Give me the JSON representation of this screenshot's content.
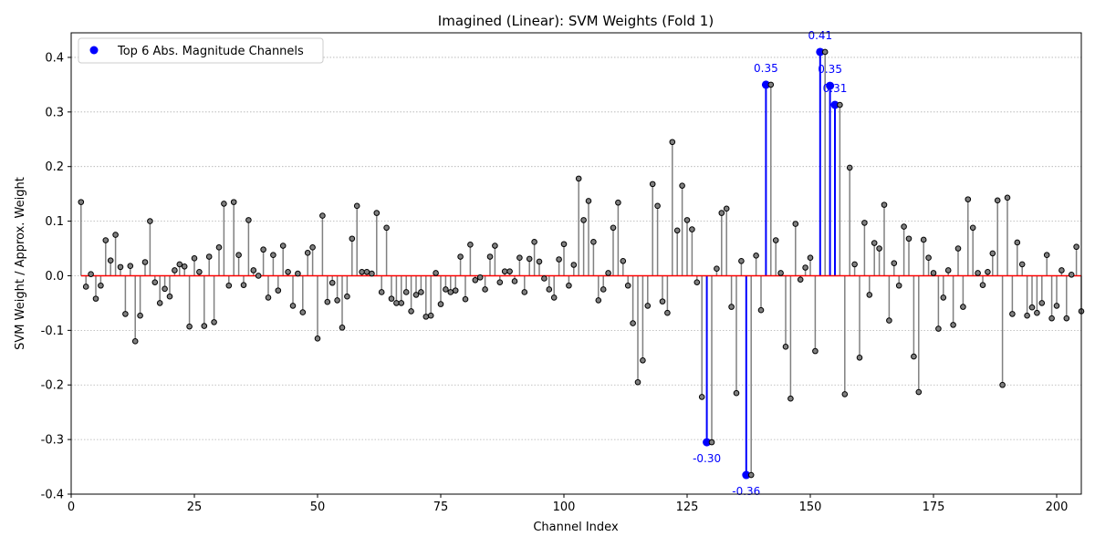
{
  "chart_data": {
    "type": "stem",
    "title": "Imagined (Linear): SVM Weights (Fold 1)",
    "xlabel": "Channel Index",
    "ylabel": "SVM Weight / Approx. Weight",
    "xlim": [
      0,
      205
    ],
    "ylim": [
      -0.4,
      0.445
    ],
    "xticks": [
      0,
      25,
      50,
      75,
      100,
      125,
      150,
      175,
      200
    ],
    "yticks": [
      -0.4,
      -0.3,
      -0.2,
      -0.1,
      0.0,
      0.1,
      0.2,
      0.3,
      0.4
    ],
    "grid": "y-dotted",
    "legend": {
      "placement": "top-left",
      "label": "Top 6 Abs. Magnitude Channels"
    },
    "colors": {
      "stem": "#808080",
      "marker": "#808080",
      "highlight": "#0000ff",
      "baseline": "#ff0000"
    },
    "values": [
      0.135,
      -0.02,
      0.003,
      -0.042,
      -0.018,
      0.065,
      0.028,
      0.075,
      0.016,
      -0.07,
      0.018,
      -0.12,
      -0.073,
      0.025,
      0.1,
      -0.012,
      -0.05,
      -0.024,
      -0.038,
      0.01,
      0.021,
      0.017,
      -0.093,
      0.032,
      0.007,
      -0.092,
      0.035,
      -0.085,
      0.052,
      0.132,
      -0.018,
      0.135,
      0.038,
      -0.017,
      0.102,
      0.01,
      0.0,
      0.048,
      -0.04,
      0.038,
      -0.027,
      0.055,
      0.007,
      -0.055,
      0.004,
      -0.067,
      0.042,
      0.052,
      -0.115,
      0.11,
      -0.048,
      -0.013,
      -0.045,
      -0.095,
      -0.038,
      0.068,
      0.128,
      0.007,
      0.007,
      0.004,
      0.115,
      -0.03,
      0.088,
      -0.042,
      -0.05,
      -0.05,
      -0.03,
      -0.065,
      -0.035,
      -0.03,
      -0.075,
      -0.073,
      0.005,
      -0.052,
      -0.025,
      -0.03,
      -0.027,
      0.035,
      -0.043,
      0.057,
      -0.008,
      -0.003,
      -0.025,
      0.035,
      0.055,
      -0.012,
      0.008,
      0.008,
      -0.01,
      0.033,
      -0.03,
      0.031,
      0.062,
      0.026,
      -0.005,
      -0.025,
      -0.04,
      0.03,
      0.058,
      -0.018,
      0.02,
      0.178,
      0.102,
      0.137,
      0.062,
      -0.045,
      -0.025,
      0.005,
      0.088,
      0.134,
      0.027,
      -0.018,
      -0.087,
      -0.195,
      -0.155,
      -0.055,
      0.168,
      0.128,
      -0.047,
      -0.068,
      0.245,
      0.083,
      0.165,
      0.102,
      0.085,
      -0.012,
      -0.222,
      -0.118,
      -0.305,
      0.013,
      0.115,
      0.123,
      -0.057,
      -0.215,
      0.027,
      -0.09,
      -0.365,
      0.037,
      -0.063,
      -0.135,
      0.35,
      0.065,
      0.005,
      -0.13,
      -0.225,
      0.095,
      -0.007,
      0.015,
      0.033,
      -0.138,
      -0.01,
      0.41,
      0.218,
      0.348,
      0.313,
      -0.217,
      0.198,
      0.021,
      -0.15,
      0.097,
      -0.035,
      0.06,
      0.05,
      0.13,
      -0.082,
      0.023,
      -0.018,
      0.09,
      0.068,
      -0.148,
      -0.213,
      0.066,
      0.033,
      0.005,
      -0.097,
      -0.04,
      0.01,
      -0.09,
      0.05,
      -0.057,
      0.14,
      0.088,
      0.005,
      -0.017,
      0.007,
      0.041,
      0.138,
      -0.2,
      0.143,
      -0.07,
      0.061,
      0.021,
      -0.073,
      -0.058,
      -0.068,
      -0.05,
      0.038,
      -0.078,
      -0.055,
      0.01,
      -0.078,
      0.002,
      0.053,
      -0.065
    ],
    "highlights": [
      {
        "index": 129,
        "value": -0.305,
        "label": "-0.30"
      },
      {
        "index": 137,
        "value": -0.365,
        "label": "-0.36"
      },
      {
        "index": 141,
        "value": 0.35,
        "label": "0.35"
      },
      {
        "index": 152,
        "value": 0.41,
        "label": "0.41"
      },
      {
        "index": 154,
        "value": 0.348,
        "label": "0.35"
      },
      {
        "index": 155,
        "value": 0.313,
        "label": "0.31"
      }
    ]
  }
}
